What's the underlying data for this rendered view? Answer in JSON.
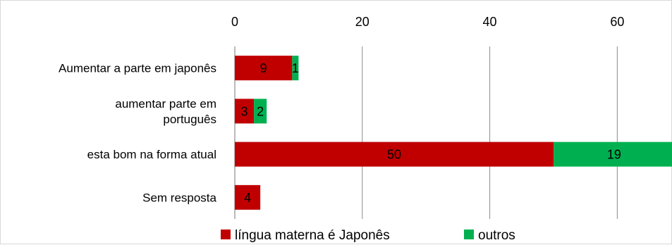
{
  "chart_data": {
    "type": "bar",
    "orientation": "horizontal",
    "stacked": true,
    "categories": [
      [
        "Aumentar a parte em japonês"
      ],
      [
        "aumentar parte em",
        "português"
      ],
      [
        "esta bom na forma atual"
      ],
      [
        "Sem resposta"
      ]
    ],
    "series": [
      {
        "name": "língua materna é Japonês",
        "color": "#c00000",
        "values": [
          9,
          3,
          50,
          4
        ]
      },
      {
        "name": "outros",
        "color": "#00b050",
        "values": [
          1,
          2,
          19,
          0
        ]
      }
    ],
    "xlim": [
      0,
      68.7
    ],
    "xticks": [
      0,
      20,
      40,
      60
    ],
    "x_axis_position": "top",
    "grid": true,
    "legend": "bottom",
    "title": "",
    "xlabel": "",
    "ylabel": ""
  }
}
